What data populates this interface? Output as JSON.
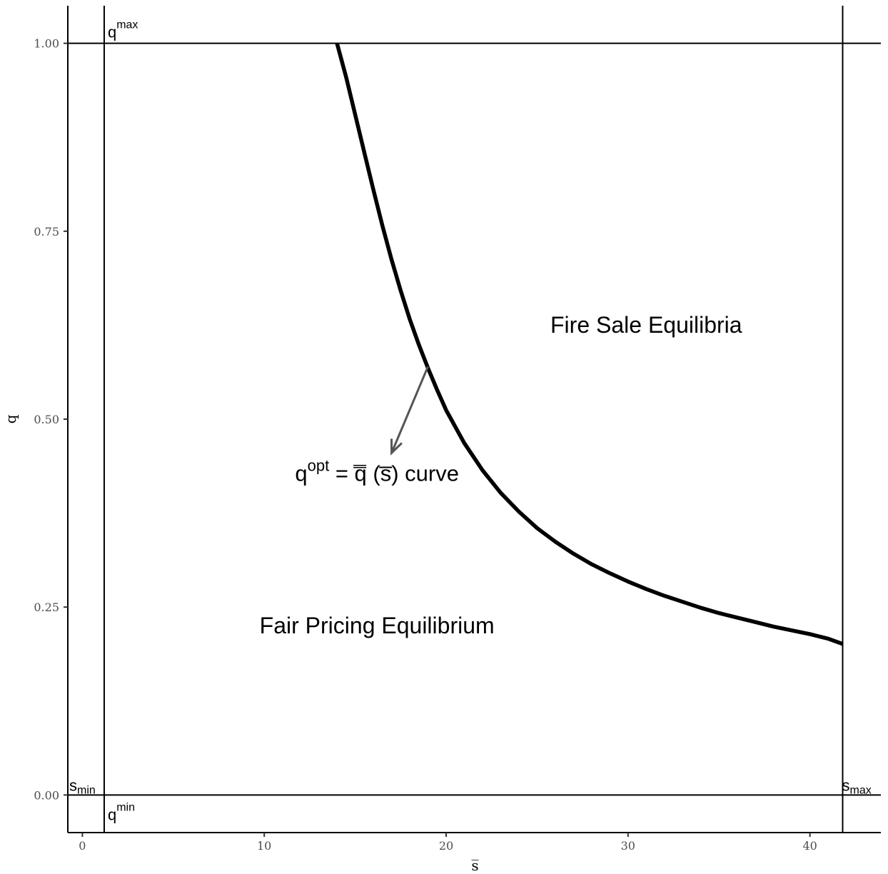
{
  "chart_data": {
    "type": "line",
    "title": "",
    "xlabel": "s̅",
    "ylabel": "q",
    "xlim": [
      -0.8,
      43.9
    ],
    "ylim": [
      -0.05,
      1.05
    ],
    "x_ticks": [
      0,
      10,
      20,
      30,
      40
    ],
    "x_tick_labels": [
      "0",
      "10",
      "20",
      "30",
      "40"
    ],
    "y_ticks": [
      0,
      0.25,
      0.5,
      0.75,
      1.0
    ],
    "y_tick_labels": [
      "0.00",
      "0.25",
      "0.50",
      "0.75",
      "1.00"
    ],
    "grid": false,
    "series": [
      {
        "x": [
          14.0,
          14.5,
          15.0,
          15.5,
          16.0,
          16.5,
          17.0,
          17.5,
          18.0,
          18.5,
          19.0,
          19.5,
          20.0,
          21.0,
          22.0,
          23.0,
          24.0,
          25.0,
          26.0,
          27.0,
          28.0,
          29.0,
          30.0,
          31.0,
          32.0,
          33.0,
          34.0,
          35.0,
          36.0,
          37.0,
          38.0,
          39.0,
          40.0,
          41.0,
          41.8
        ],
        "y": [
          1.0,
          0.955,
          0.905,
          0.855,
          0.805,
          0.757,
          0.712,
          0.671,
          0.633,
          0.599,
          0.568,
          0.539,
          0.512,
          0.468,
          0.432,
          0.402,
          0.377,
          0.355,
          0.337,
          0.321,
          0.307,
          0.295,
          0.284,
          0.274,
          0.265,
          0.257,
          0.249,
          0.242,
          0.236,
          0.23,
          0.224,
          0.219,
          0.214,
          0.208,
          0.201
        ]
      }
    ],
    "reference_lines": {
      "horizontal": [
        {
          "y": 1.0,
          "label": "q",
          "sup": "max"
        },
        {
          "y": 0.0,
          "label": "q",
          "sup": "min"
        }
      ],
      "vertical": [
        {
          "x": 1.2,
          "label": "s",
          "sub": "min"
        },
        {
          "x": 41.8,
          "label": "s",
          "sub": "max"
        }
      ]
    },
    "annotations": [
      {
        "text": "Fire Sale Equilibria",
        "x": 31,
        "y": 0.615
      },
      {
        "text": "Fair Pricing Equilibrium",
        "x": 16.2,
        "y": 0.215
      },
      {
        "label_x": 16.2,
        "label_y": 0.418,
        "arrow_from": [
          19.0,
          0.57
        ],
        "arrow_to": [
          17.0,
          0.455
        ],
        "prefix": "q",
        "sup": "opt",
        "eq": "=",
        "qsym": "q̿",
        "arg": "(s̅) curve"
      }
    ]
  }
}
